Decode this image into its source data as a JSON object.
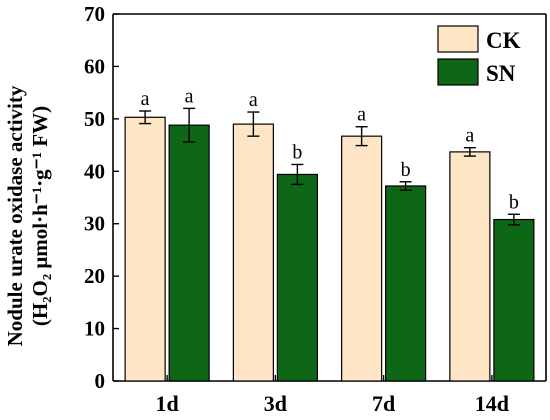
{
  "chart_data": {
    "type": "bar",
    "categories": [
      "1d",
      "3d",
      "7d",
      "14d"
    ],
    "series": [
      {
        "name": "CK",
        "color": "#FDE5C5",
        "values": [
          50.3,
          49.0,
          46.7,
          43.7
        ],
        "errors": [
          1.2,
          2.3,
          1.8,
          0.8
        ],
        "labels": [
          "a",
          "a",
          "a",
          "a"
        ]
      },
      {
        "name": "SN",
        "color": "#0E6617",
        "values": [
          48.8,
          39.4,
          37.2,
          30.8
        ],
        "errors": [
          3.2,
          1.9,
          0.8,
          1.0
        ],
        "labels": [
          "a",
          "b",
          "b",
          "b"
        ]
      }
    ],
    "ylim": [
      0,
      70
    ],
    "yticks": [
      0,
      10,
      20,
      30,
      40,
      50,
      60,
      70
    ],
    "ylabel_line1": "Nodule urate oxidase activity",
    "ylabel_line2": "(H₂O₂ μmol·h⁻¹·g⁻¹ FW)",
    "xlabel": "",
    "legend_position": "top-right",
    "grid": false
  }
}
